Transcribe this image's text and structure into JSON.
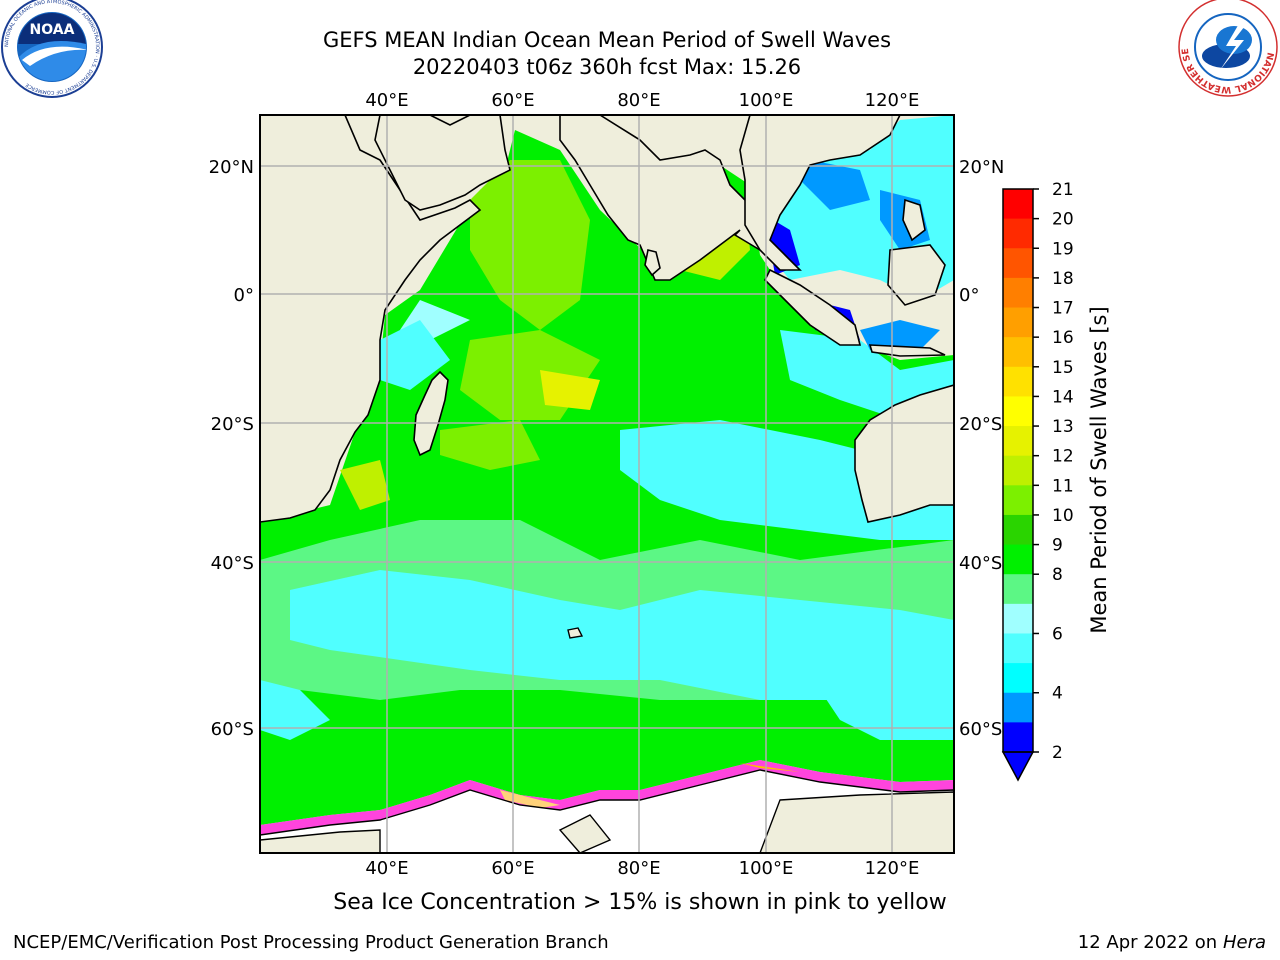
{
  "titles": {
    "line1": "GEFS MEAN Indian Ocean Mean Period of Swell Waves",
    "line2": "20220403 t06z 360h fcst   Max: 15.26"
  },
  "logos": {
    "left": {
      "icon": "noaa-logo",
      "text": "NOAA",
      "ring_text": "NATIONAL OCEANIC AND ATMOSPHERIC ADMINISTRATION · U.S. DEPARTMENT OF COMMERCE"
    },
    "right": {
      "icon": "nws-logo",
      "ring_text": "NATIONAL WEATHER SERVICE"
    }
  },
  "axes": {
    "lon_labels": [
      "40°E",
      "60°E",
      "80°E",
      "100°E",
      "120°E"
    ],
    "lat_labels": [
      "20°N",
      "0°",
      "20°S",
      "40°S",
      "60°S"
    ],
    "grid": true
  },
  "colorbar": {
    "label": "Mean Period of Swell Waves [s]",
    "ticks": [
      "21",
      "20",
      "19",
      "18",
      "17",
      "16",
      "15",
      "14",
      "13",
      "12",
      "11",
      "10",
      "9",
      "8",
      "6",
      "4",
      "2"
    ],
    "colors": [
      "#ff0000",
      "#ff2a00",
      "#ff5500",
      "#ff7f00",
      "#ff9f00",
      "#ffbf00",
      "#ffe100",
      "#ffff00",
      "#e6f200",
      "#bff000",
      "#7cf000",
      "#2ad400",
      "#00f000",
      "#5cf785",
      "#a0ffff",
      "#50ffff",
      "#00ffff",
      "#0099ff",
      "#0000ff"
    ],
    "extend": "min"
  },
  "caption": "Sea Ice Concentration > 15% is shown in pink to yellow",
  "footer": {
    "left": "NCEP/EMC/Verification Post Processing Product Generation Branch",
    "right_prefix": "12 Apr 2022 on ",
    "right_host": "Hera"
  }
}
